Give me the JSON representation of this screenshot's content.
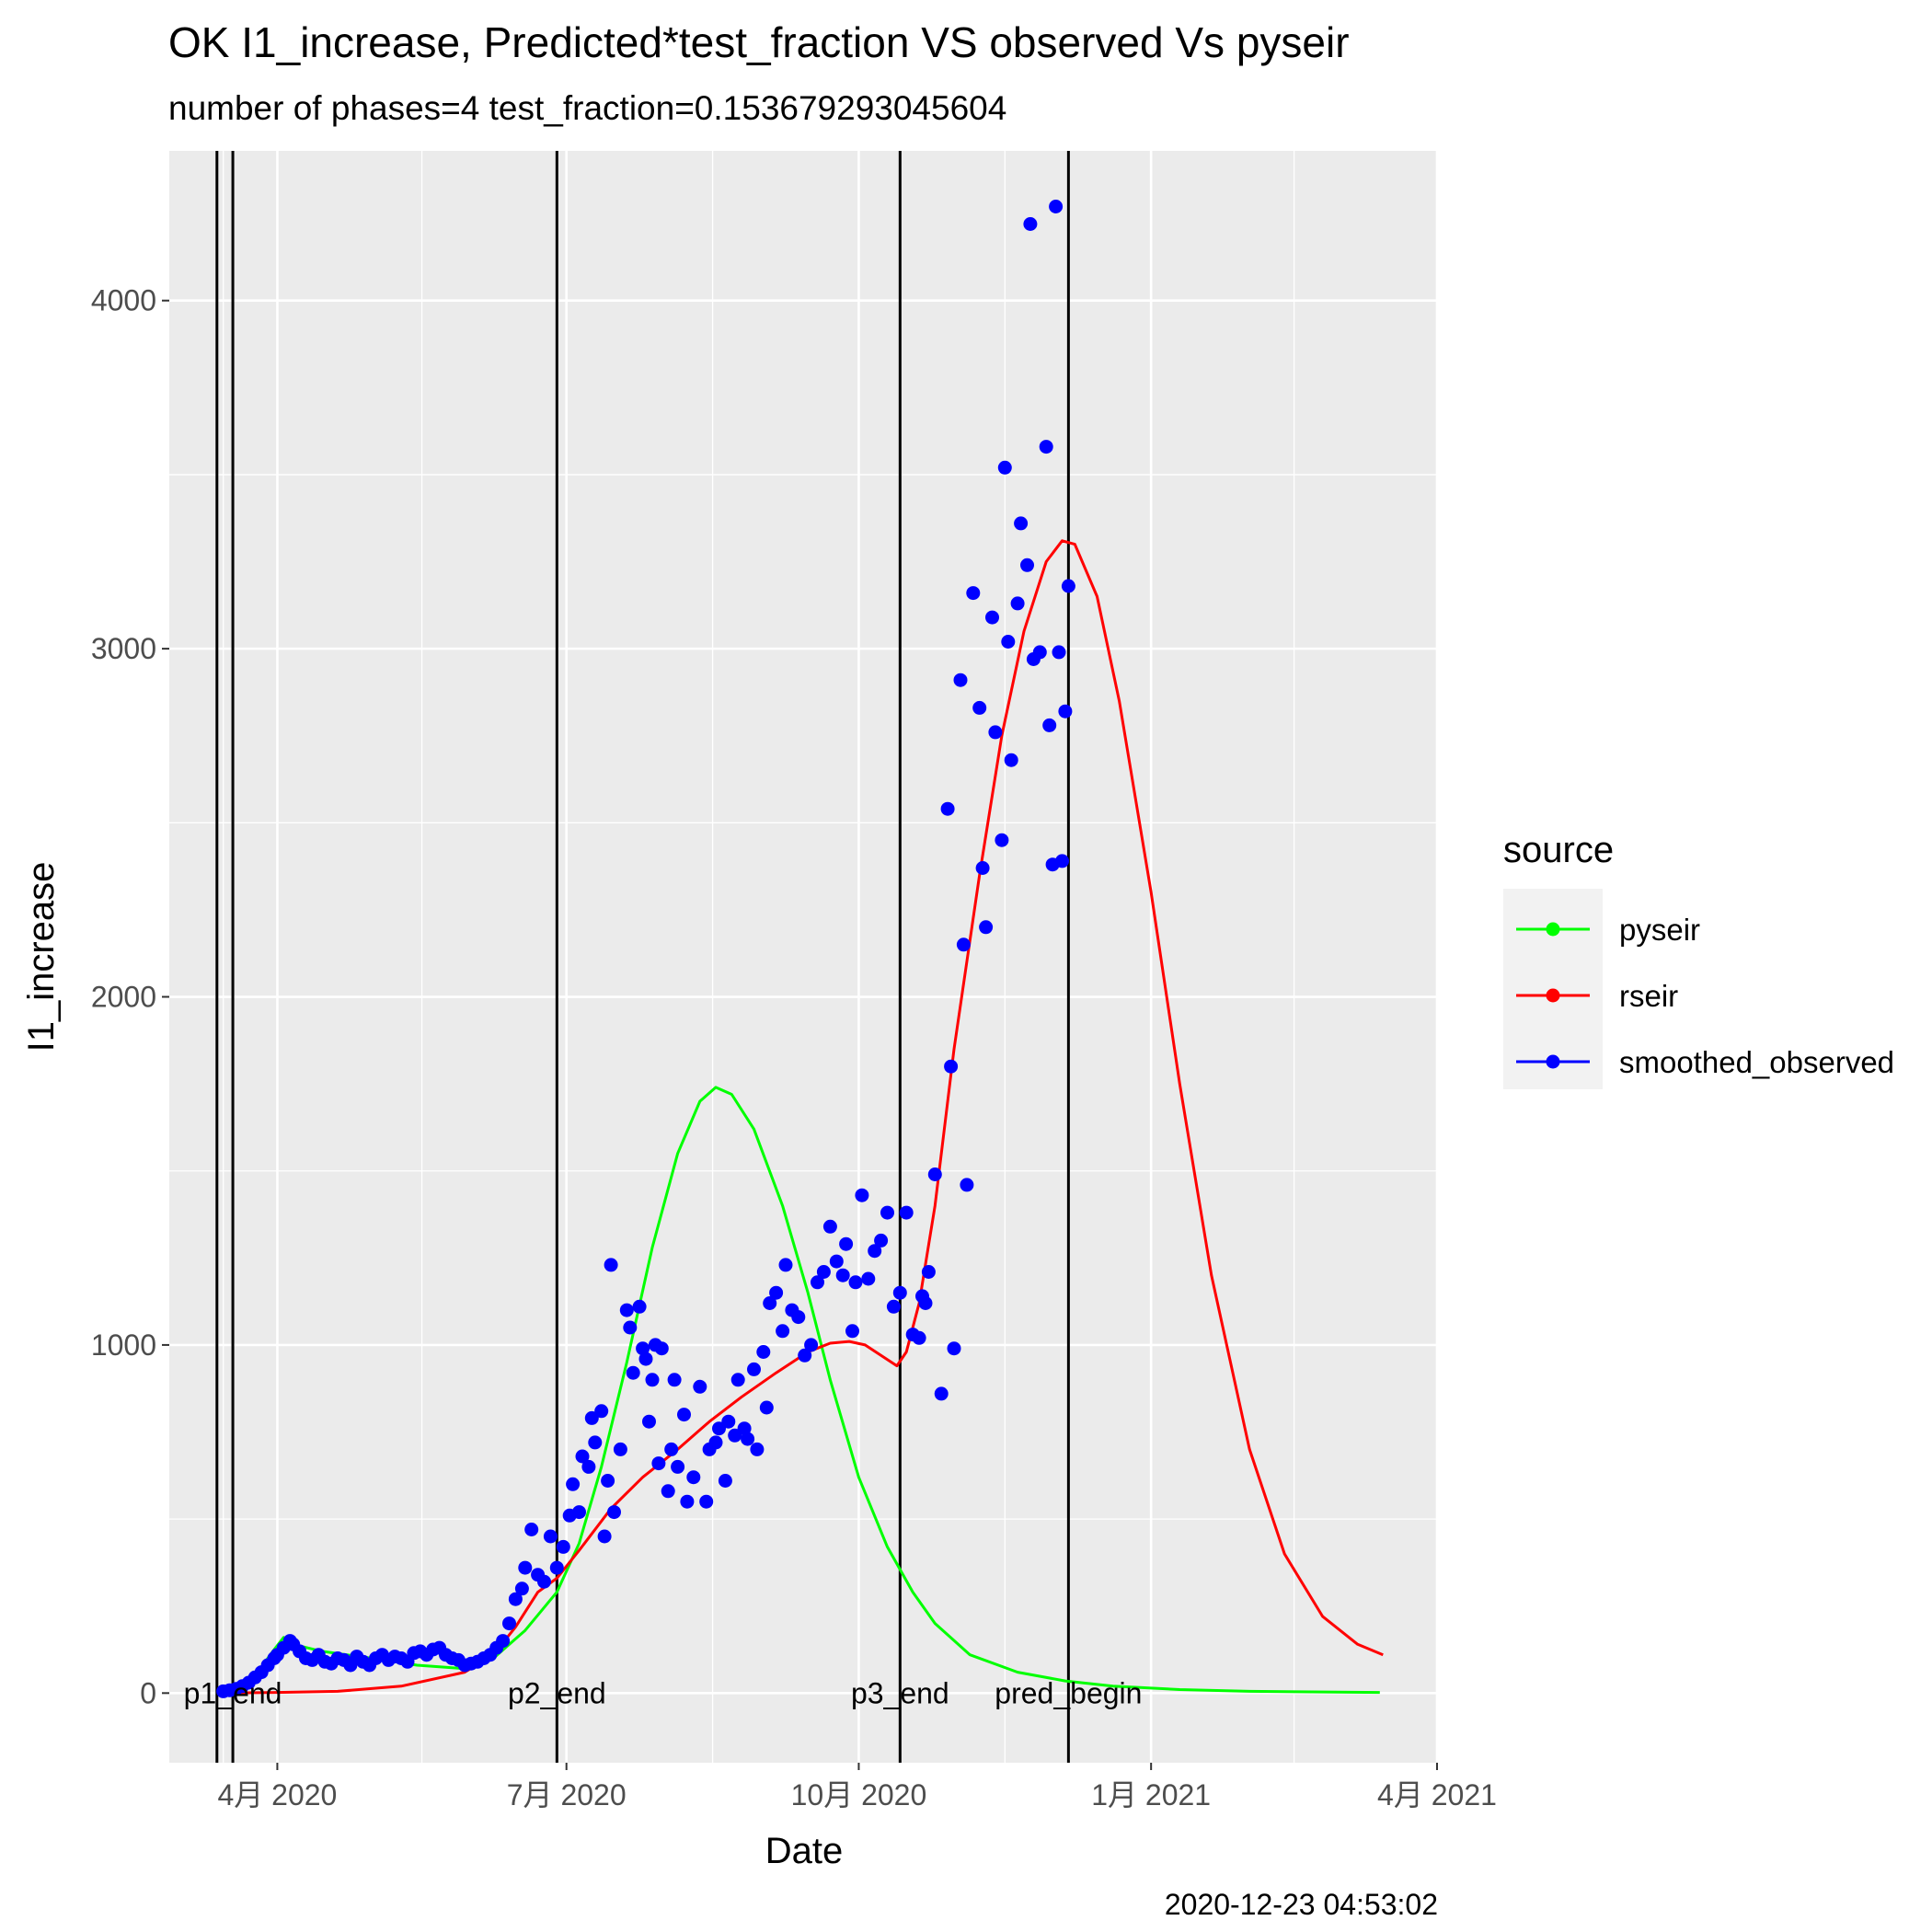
{
  "chart_data": {
    "type": "scatter",
    "title": "OK I1_increase, Predicted*test_fraction VS observed Vs pyseir",
    "subtitle": "number of phases=4   test_fraction=0.153679293045604",
    "xlabel": "Date",
    "ylabel": "I1_increase",
    "x_ticks": [
      "4月 2020",
      "7月 2020",
      "10月 2020",
      "1月 2021",
      "4月 2021"
    ],
    "y_ticks": [
      "0",
      "1000",
      "2000",
      "3000",
      "4000"
    ],
    "xlim": [
      "2020-02-27",
      "2021-04-01"
    ],
    "ylim": [
      -200,
      4430
    ],
    "grid": true,
    "legend": {
      "title": "source",
      "position": "right",
      "entries": [
        {
          "name": "pyseir",
          "color": "#00ff00"
        },
        {
          "name": "rseir",
          "color": "#ff0000"
        },
        {
          "name": "smoothed_observed",
          "color": "#0000ff"
        }
      ]
    },
    "vlines": [
      {
        "date": "2020-03-13",
        "label": ""
      },
      {
        "date": "2020-03-18",
        "label": "p1_end"
      },
      {
        "date": "2020-06-28",
        "label": "p2_end"
      },
      {
        "date": "2020-10-14",
        "label": "p3_end"
      },
      {
        "date": "2020-12-06",
        "label": "pred_begin"
      }
    ],
    "caption": "2020-12-23 04:53:02",
    "series": [
      {
        "name": "pyseir",
        "type": "line",
        "color": "#00ff00",
        "points": [
          [
            "2020-03-15",
            0
          ],
          [
            "2020-03-25",
            50
          ],
          [
            "2020-03-31",
            125
          ],
          [
            "2020-04-03",
            160
          ],
          [
            "2020-04-06",
            140
          ],
          [
            "2020-04-15",
            120
          ],
          [
            "2020-05-01",
            100
          ],
          [
            "2020-05-15",
            80
          ],
          [
            "2020-05-30",
            70
          ],
          [
            "2020-06-08",
            100
          ],
          [
            "2020-06-18",
            180
          ],
          [
            "2020-06-28",
            290
          ],
          [
            "2020-07-05",
            430
          ],
          [
            "2020-07-12",
            650
          ],
          [
            "2020-07-20",
            950
          ],
          [
            "2020-07-28",
            1280
          ],
          [
            "2020-08-05",
            1550
          ],
          [
            "2020-08-12",
            1700
          ],
          [
            "2020-08-17",
            1740
          ],
          [
            "2020-08-22",
            1720
          ],
          [
            "2020-08-29",
            1620
          ],
          [
            "2020-09-07",
            1400
          ],
          [
            "2020-09-15",
            1150
          ],
          [
            "2020-09-22",
            900
          ],
          [
            "2020-10-01",
            620
          ],
          [
            "2020-10-10",
            420
          ],
          [
            "2020-10-18",
            290
          ],
          [
            "2020-10-25",
            200
          ],
          [
            "2020-11-05",
            110
          ],
          [
            "2020-11-20",
            60
          ],
          [
            "2020-12-05",
            35
          ],
          [
            "2020-12-20",
            20
          ],
          [
            "2021-01-10",
            10
          ],
          [
            "2021-02-01",
            5
          ],
          [
            "2021-03-01",
            3
          ],
          [
            "2021-03-14",
            2
          ]
        ]
      },
      {
        "name": "rseir",
        "type": "line",
        "color": "#ff0000",
        "points": [
          [
            "2020-03-15",
            0
          ],
          [
            "2020-04-01",
            2
          ],
          [
            "2020-04-20",
            5
          ],
          [
            "2020-05-10",
            20
          ],
          [
            "2020-05-30",
            60
          ],
          [
            "2020-06-08",
            110
          ],
          [
            "2020-06-15",
            190
          ],
          [
            "2020-06-22",
            290
          ],
          [
            "2020-06-28",
            330
          ],
          [
            "2020-07-05",
            410
          ],
          [
            "2020-07-15",
            530
          ],
          [
            "2020-07-25",
            620
          ],
          [
            "2020-08-05",
            700
          ],
          [
            "2020-08-15",
            780
          ],
          [
            "2020-08-25",
            850
          ],
          [
            "2020-09-05",
            920
          ],
          [
            "2020-09-15",
            980
          ],
          [
            "2020-09-22",
            1005
          ],
          [
            "2020-09-28",
            1010
          ],
          [
            "2020-10-03",
            1000
          ],
          [
            "2020-10-08",
            970
          ],
          [
            "2020-10-13",
            940
          ],
          [
            "2020-10-16",
            980
          ],
          [
            "2020-10-20",
            1120
          ],
          [
            "2020-10-25",
            1400
          ],
          [
            "2020-10-31",
            1850
          ],
          [
            "2020-11-08",
            2350
          ],
          [
            "2020-11-15",
            2750
          ],
          [
            "2020-11-22",
            3050
          ],
          [
            "2020-11-29",
            3250
          ],
          [
            "2020-12-04",
            3310
          ],
          [
            "2020-12-08",
            3300
          ],
          [
            "2020-12-15",
            3150
          ],
          [
            "2020-12-22",
            2850
          ],
          [
            "2021-01-01",
            2300
          ],
          [
            "2021-01-10",
            1750
          ],
          [
            "2021-01-20",
            1200
          ],
          [
            "2021-02-01",
            700
          ],
          [
            "2021-02-12",
            400
          ],
          [
            "2021-02-24",
            220
          ],
          [
            "2021-03-07",
            140
          ],
          [
            "2021-03-15",
            110
          ]
        ]
      },
      {
        "name": "smoothed_observed",
        "type": "scatter",
        "color": "#0000ff",
        "points": [
          [
            "2020-03-15",
            5
          ],
          [
            "2020-03-17",
            8
          ],
          [
            "2020-03-19",
            12
          ],
          [
            "2020-03-21",
            20
          ],
          [
            "2020-03-23",
            30
          ],
          [
            "2020-03-25",
            45
          ],
          [
            "2020-03-27",
            60
          ],
          [
            "2020-03-29",
            80
          ],
          [
            "2020-03-31",
            100
          ],
          [
            "2020-04-01",
            110
          ],
          [
            "2020-04-03",
            130
          ],
          [
            "2020-04-05",
            150
          ],
          [
            "2020-04-06",
            140
          ],
          [
            "2020-04-08",
            120
          ],
          [
            "2020-04-10",
            100
          ],
          [
            "2020-04-12",
            95
          ],
          [
            "2020-04-14",
            110
          ],
          [
            "2020-04-16",
            90
          ],
          [
            "2020-04-18",
            85
          ],
          [
            "2020-04-20",
            100
          ],
          [
            "2020-04-22",
            95
          ],
          [
            "2020-04-24",
            80
          ],
          [
            "2020-04-26",
            105
          ],
          [
            "2020-04-28",
            90
          ],
          [
            "2020-04-30",
            80
          ],
          [
            "2020-05-02",
            100
          ],
          [
            "2020-05-04",
            110
          ],
          [
            "2020-05-06",
            95
          ],
          [
            "2020-05-08",
            105
          ],
          [
            "2020-05-10",
            100
          ],
          [
            "2020-05-12",
            90
          ],
          [
            "2020-05-14",
            115
          ],
          [
            "2020-05-16",
            120
          ],
          [
            "2020-05-18",
            110
          ],
          [
            "2020-05-20",
            125
          ],
          [
            "2020-05-22",
            130
          ],
          [
            "2020-05-24",
            110
          ],
          [
            "2020-05-26",
            100
          ],
          [
            "2020-05-28",
            95
          ],
          [
            "2020-05-30",
            80
          ],
          [
            "2020-06-01",
            85
          ],
          [
            "2020-06-03",
            90
          ],
          [
            "2020-06-05",
            100
          ],
          [
            "2020-06-07",
            110
          ],
          [
            "2020-06-09",
            130
          ],
          [
            "2020-06-11",
            150
          ],
          [
            "2020-06-13",
            200
          ],
          [
            "2020-06-15",
            270
          ],
          [
            "2020-06-17",
            300
          ],
          [
            "2020-06-18",
            360
          ],
          [
            "2020-06-20",
            470
          ],
          [
            "2020-06-22",
            340
          ],
          [
            "2020-06-24",
            320
          ],
          [
            "2020-06-26",
            450
          ],
          [
            "2020-06-28",
            360
          ],
          [
            "2020-06-30",
            420
          ],
          [
            "2020-07-02",
            510
          ],
          [
            "2020-07-03",
            600
          ],
          [
            "2020-07-05",
            520
          ],
          [
            "2020-07-06",
            680
          ],
          [
            "2020-07-08",
            650
          ],
          [
            "2020-07-09",
            790
          ],
          [
            "2020-07-10",
            720
          ],
          [
            "2020-07-12",
            810
          ],
          [
            "2020-07-13",
            450
          ],
          [
            "2020-07-14",
            610
          ],
          [
            "2020-07-15",
            1230
          ],
          [
            "2020-07-16",
            520
          ],
          [
            "2020-07-18",
            700
          ],
          [
            "2020-07-20",
            1100
          ],
          [
            "2020-07-21",
            1050
          ],
          [
            "2020-07-22",
            920
          ],
          [
            "2020-07-24",
            1110
          ],
          [
            "2020-07-25",
            990
          ],
          [
            "2020-07-26",
            960
          ],
          [
            "2020-07-27",
            780
          ],
          [
            "2020-07-28",
            900
          ],
          [
            "2020-07-29",
            1000
          ],
          [
            "2020-07-30",
            660
          ],
          [
            "2020-07-31",
            990
          ],
          [
            "2020-08-02",
            580
          ],
          [
            "2020-08-03",
            700
          ],
          [
            "2020-08-04",
            900
          ],
          [
            "2020-08-05",
            650
          ],
          [
            "2020-08-07",
            800
          ],
          [
            "2020-08-08",
            550
          ],
          [
            "2020-08-10",
            620
          ],
          [
            "2020-08-12",
            880
          ],
          [
            "2020-08-14",
            550
          ],
          [
            "2020-08-15",
            700
          ],
          [
            "2020-08-17",
            720
          ],
          [
            "2020-08-18",
            760
          ],
          [
            "2020-08-20",
            610
          ],
          [
            "2020-08-21",
            780
          ],
          [
            "2020-08-23",
            740
          ],
          [
            "2020-08-24",
            900
          ],
          [
            "2020-08-26",
            760
          ],
          [
            "2020-08-27",
            730
          ],
          [
            "2020-08-29",
            930
          ],
          [
            "2020-08-30",
            700
          ],
          [
            "2020-09-01",
            980
          ],
          [
            "2020-09-02",
            820
          ],
          [
            "2020-09-03",
            1120
          ],
          [
            "2020-09-05",
            1150
          ],
          [
            "2020-09-07",
            1040
          ],
          [
            "2020-09-08",
            1230
          ],
          [
            "2020-09-10",
            1100
          ],
          [
            "2020-09-12",
            1080
          ],
          [
            "2020-09-14",
            970
          ],
          [
            "2020-09-16",
            1000
          ],
          [
            "2020-09-18",
            1180
          ],
          [
            "2020-09-20",
            1210
          ],
          [
            "2020-09-22",
            1340
          ],
          [
            "2020-09-24",
            1240
          ],
          [
            "2020-09-26",
            1200
          ],
          [
            "2020-09-27",
            1290
          ],
          [
            "2020-09-29",
            1040
          ],
          [
            "2020-09-30",
            1180
          ],
          [
            "2020-10-02",
            1430
          ],
          [
            "2020-10-04",
            1190
          ],
          [
            "2020-10-06",
            1270
          ],
          [
            "2020-10-08",
            1300
          ],
          [
            "2020-10-10",
            1380
          ],
          [
            "2020-10-12",
            1110
          ],
          [
            "2020-10-14",
            1150
          ],
          [
            "2020-10-16",
            1380
          ],
          [
            "2020-10-18",
            1030
          ],
          [
            "2020-10-20",
            1020
          ],
          [
            "2020-10-21",
            1140
          ],
          [
            "2020-10-22",
            1120
          ],
          [
            "2020-10-23",
            1210
          ],
          [
            "2020-10-25",
            1490
          ],
          [
            "2020-10-27",
            860
          ],
          [
            "2020-10-29",
            2540
          ],
          [
            "2020-10-30",
            1800
          ],
          [
            "2020-10-31",
            990
          ],
          [
            "2020-11-02",
            2910
          ],
          [
            "2020-11-03",
            2150
          ],
          [
            "2020-11-04",
            1460
          ],
          [
            "2020-11-06",
            3160
          ],
          [
            "2020-11-08",
            2830
          ],
          [
            "2020-11-09",
            2370
          ],
          [
            "2020-11-10",
            2200
          ],
          [
            "2020-11-12",
            3090
          ],
          [
            "2020-11-13",
            2760
          ],
          [
            "2020-11-15",
            2450
          ],
          [
            "2020-11-16",
            3520
          ],
          [
            "2020-11-17",
            3020
          ],
          [
            "2020-11-18",
            2680
          ],
          [
            "2020-11-20",
            3130
          ],
          [
            "2020-11-21",
            3360
          ],
          [
            "2020-11-23",
            3240
          ],
          [
            "2020-11-24",
            4220
          ],
          [
            "2020-11-25",
            2970
          ],
          [
            "2020-11-27",
            2990
          ],
          [
            "2020-11-29",
            3580
          ],
          [
            "2020-11-30",
            2780
          ],
          [
            "2020-12-01",
            2380
          ],
          [
            "2020-12-02",
            4270
          ],
          [
            "2020-12-03",
            2990
          ],
          [
            "2020-12-04",
            2390
          ],
          [
            "2020-12-05",
            2820
          ],
          [
            "2020-12-06",
            3180
          ]
        ]
      }
    ]
  }
}
